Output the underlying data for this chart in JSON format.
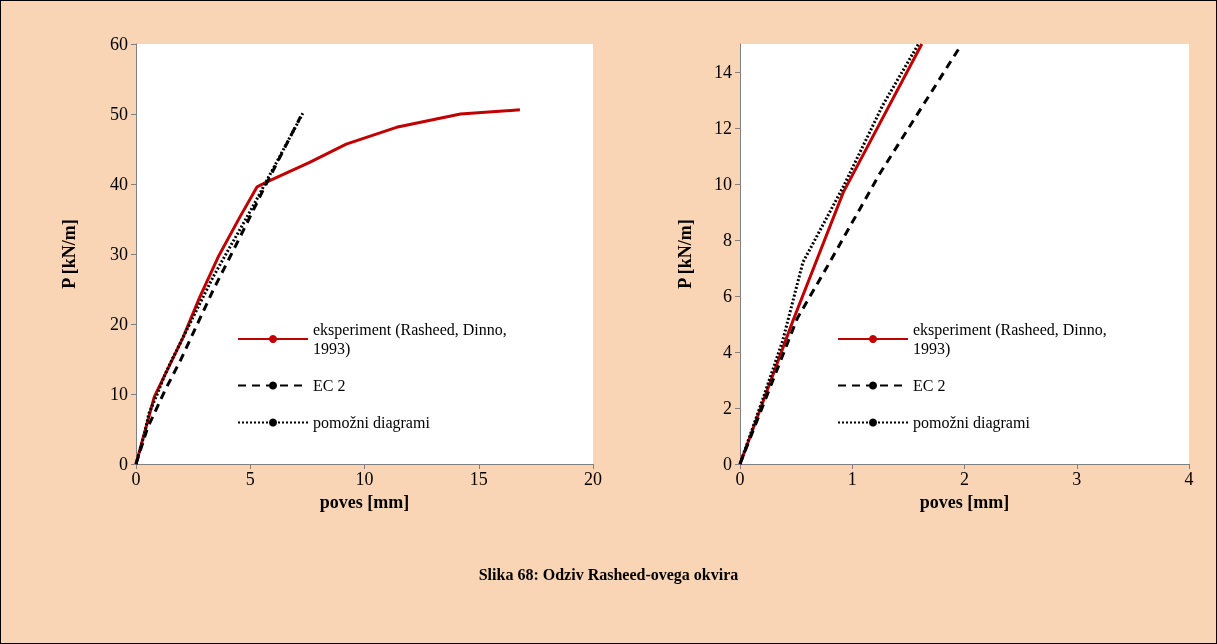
{
  "chart_data": [
    {
      "type": "line",
      "xlabel": "poves [mm]",
      "ylabel": "P [kN/m]",
      "xlim": [
        0,
        20
      ],
      "xticks": [
        0,
        5,
        10,
        15,
        20
      ],
      "ylim": [
        0,
        60
      ],
      "yticks": [
        0,
        10,
        20,
        30,
        40,
        50,
        60
      ],
      "grid": false,
      "legend": "bottom right",
      "marker": "none",
      "series": [
        {
          "name": "eksperiment (Rasheed, Dinno, 1993)",
          "color": "#c00000",
          "line_style": "solid",
          "x": [
            0,
            0.8,
            2.06,
            2.8,
            3.6,
            4.55,
            5.3,
            5.73,
            7.6,
            9.2,
            11.4,
            14.2,
            16.8
          ],
          "values": [
            0,
            9.6,
            18.1,
            23.9,
            29.6,
            35.3,
            39.6,
            40.3,
            43.1,
            45.7,
            48.1,
            50,
            50.6
          ]
        },
        {
          "name": "EC 2",
          "color": "#000000",
          "line_style": "dashed",
          "x": [
            0,
            0.51,
            0.77,
            1.25,
            1.96,
            2.36,
            3.37,
            4.55,
            5.56,
            7.2
          ],
          "values": [
            0,
            5.2,
            7.0,
            10.4,
            14.9,
            17.7,
            24.8,
            32.4,
            39.1,
            49.6
          ]
        },
        {
          "name": "pomožni diagrami",
          "color": "#000000",
          "line_style": "dotted",
          "x": [
            0,
            0.21,
            0.38,
            0.56,
            0.92,
            1.27,
            1.59,
            3.37,
            5.1,
            7.3
          ],
          "values": [
            0,
            2.4,
            4.4,
            7.2,
            9.9,
            12.8,
            15,
            26.7,
            36.7,
            50.1
          ]
        }
      ]
    },
    {
      "type": "line",
      "xlabel": "poves [mm]",
      "ylabel": "P [kN/m]",
      "xlim": [
        0,
        4
      ],
      "xticks": [
        0,
        1,
        2,
        3,
        4
      ],
      "ylim": [
        0,
        15
      ],
      "yticks": [
        0,
        2,
        4,
        6,
        8,
        10,
        12,
        14
      ],
      "grid": false,
      "legend": "bottom right",
      "marker": "none",
      "annotations": [
        "Slika 68: Odziv Rasheed-ovega okvira"
      ],
      "series": [
        {
          "name": "eksperiment (Rasheed, Dinno, 1993)",
          "color": "#c00000",
          "line_style": "solid",
          "x": [
            0,
            0.47,
            0.92,
            1.62
          ],
          "values": [
            0,
            5.1,
            9.7,
            15
          ]
        },
        {
          "name": "EC 2",
          "color": "#000000",
          "line_style": "dashed",
          "x": [
            0,
            0.51,
            0.77,
            1.25,
            1.96
          ],
          "values": [
            0,
            5.2,
            7.0,
            10.4,
            14.9
          ]
        },
        {
          "name": "pomožni diagrami",
          "color": "#000000",
          "line_style": "dotted",
          "x": [
            0,
            0.21,
            0.38,
            0.56,
            0.92,
            1.27,
            1.59
          ],
          "values": [
            0,
            2.4,
            4.4,
            7.2,
            9.9,
            12.8,
            15
          ]
        }
      ]
    }
  ]
}
